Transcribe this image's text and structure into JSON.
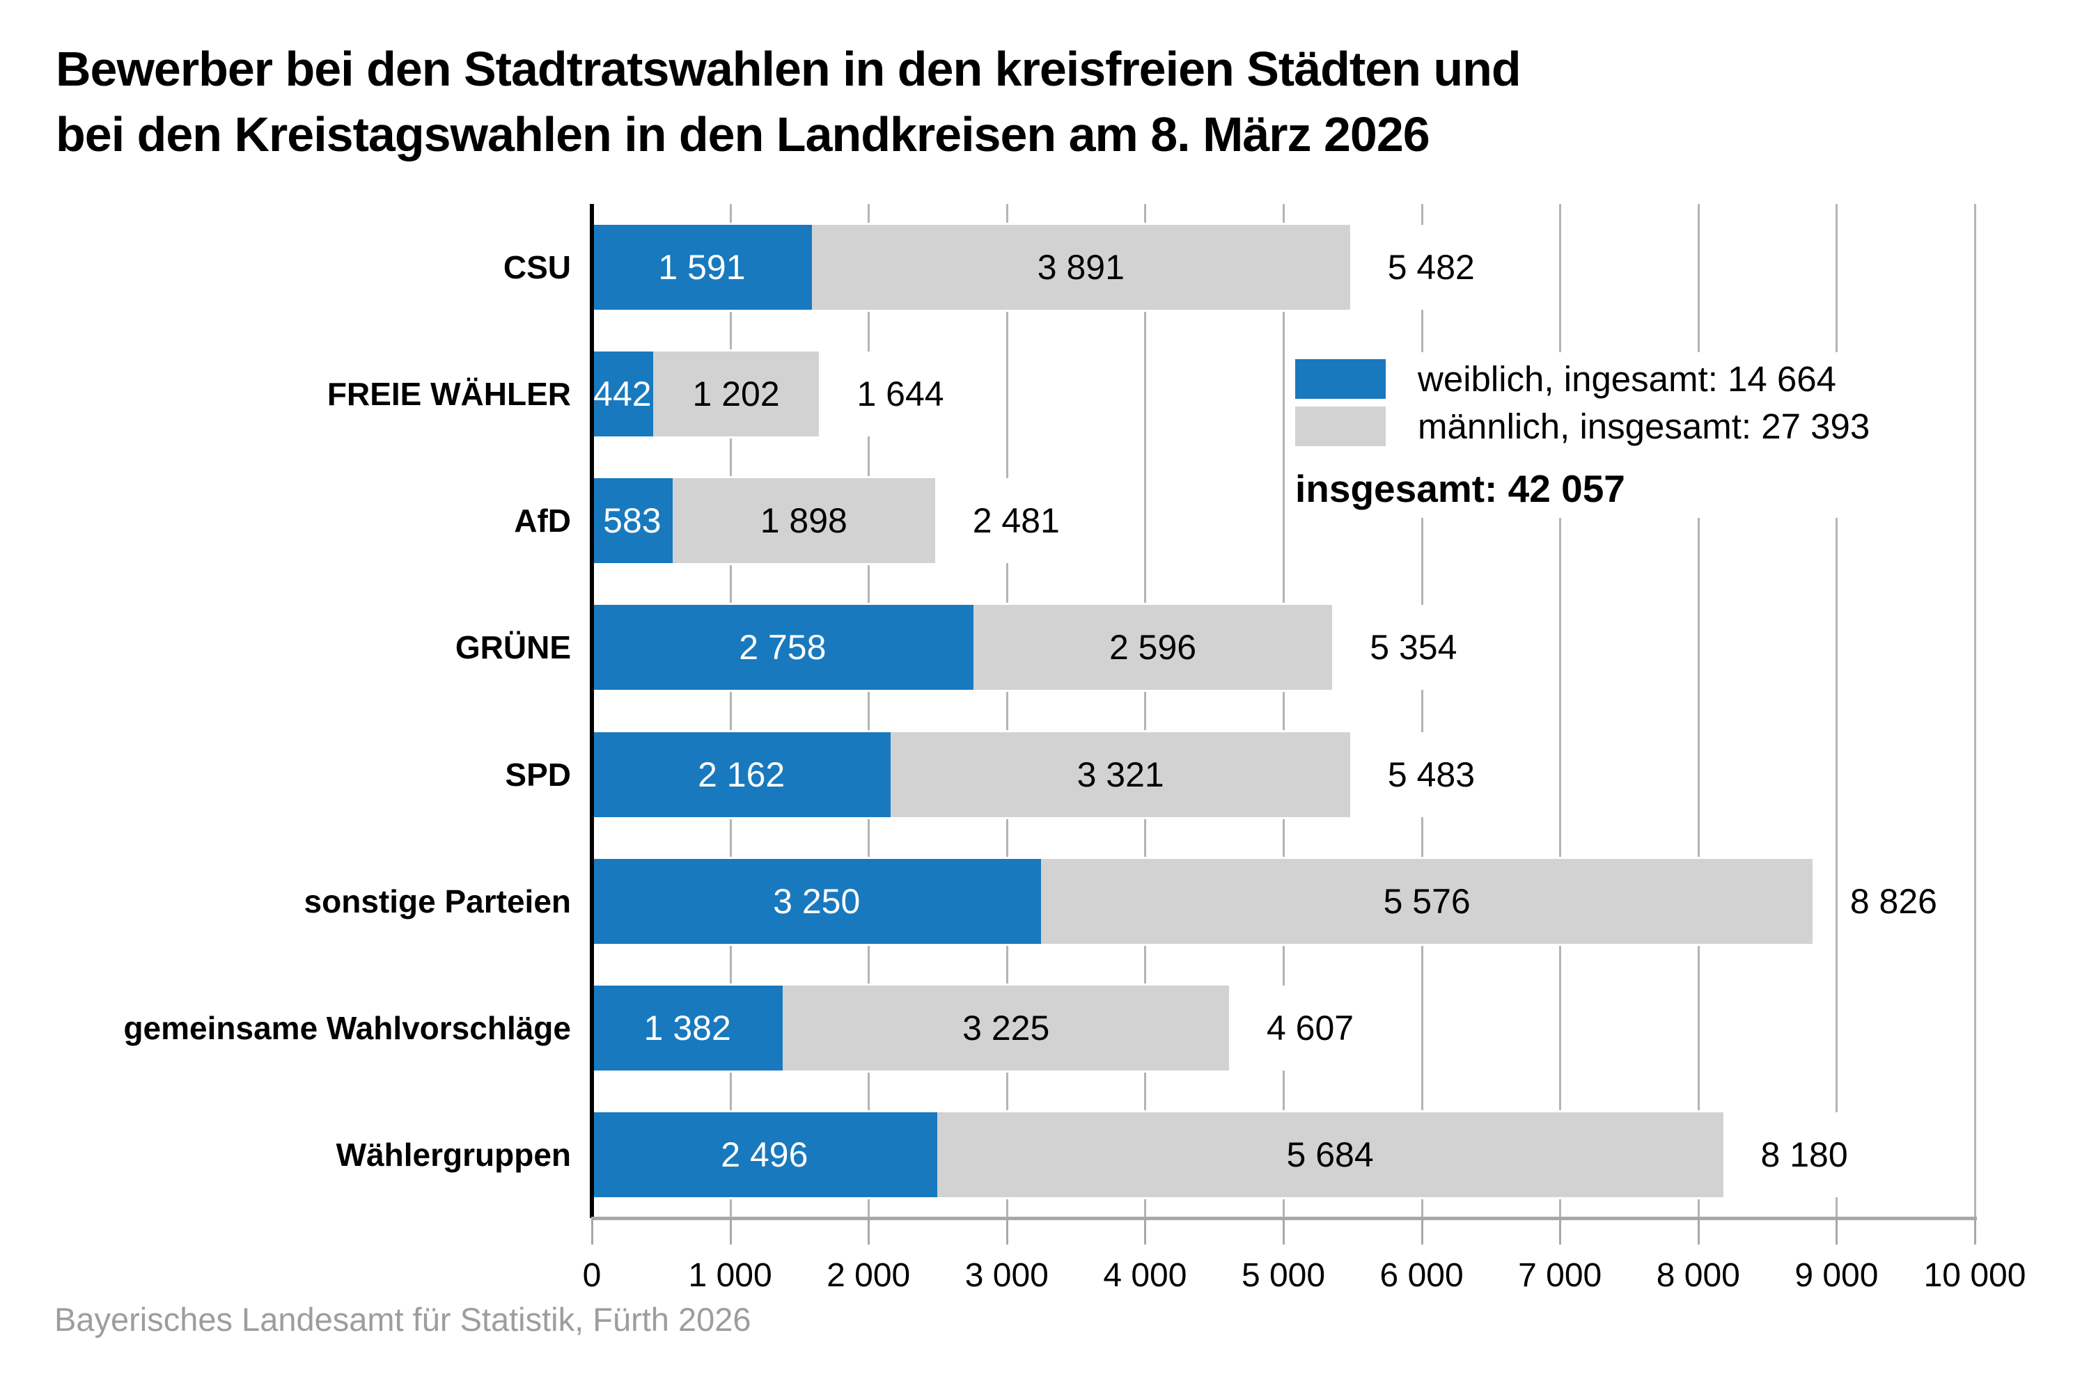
{
  "title": {
    "line1": "Bewerber bei den Stadtratswahlen in den kreisfreien Städten und",
    "line2": "bei den Kreistagswahlen in den Landkreisen am 8. März 2026"
  },
  "legend": {
    "female_label": "weiblich, ingesamt: 14 664",
    "male_label": "männlich, insgesamt: 27 393",
    "total_label": "insgesamt: 42 057"
  },
  "footer": "Bayerisches Landesamt für Statistik, Fürth 2026",
  "colors": {
    "female": "#1879be",
    "male": "#d2d2d2",
    "grid": "#b4b4b4",
    "axis": "#000000",
    "axis_bottom": "#a8a8a8",
    "footer_text": "#9d9d9d"
  },
  "chart_data": {
    "type": "bar",
    "orientation": "horizontal",
    "stacked": true,
    "title": "Bewerber bei den Stadtratswahlen in den kreisfreien Städten und bei den Kreistagswahlen in den Landkreisen am 8. März 2026",
    "categories": [
      "CSU",
      "FREIE WÄHLER",
      "AfD",
      "GRÜNE",
      "SPD",
      "sonstige Parteien",
      "gemeinsame Wahlvorschläge",
      "Wählergruppen"
    ],
    "series": [
      {
        "name": "weiblich",
        "color": "#1879be",
        "values": [
          1591,
          442,
          583,
          2758,
          2162,
          3250,
          1382,
          2496
        ],
        "labels": [
          "1 591",
          "442",
          "583",
          "2 758",
          "2 162",
          "3 250",
          "1 382",
          "2 496"
        ],
        "total": 14664
      },
      {
        "name": "männlich",
        "color": "#d2d2d2",
        "values": [
          3891,
          1202,
          1898,
          2596,
          3321,
          5576,
          3225,
          5684
        ],
        "labels": [
          "3 891",
          "1 202",
          "1 898",
          "2 596",
          "3 321",
          "5 576",
          "3 225",
          "5 684"
        ],
        "total": 27393
      }
    ],
    "totals": [
      5482,
      1644,
      2481,
      5354,
      5483,
      8826,
      4607,
      8180
    ],
    "total_labels": [
      "5 482",
      "1 644",
      "2 481",
      "5 354",
      "5 483",
      "8 826",
      "4 607",
      "8 180"
    ],
    "grand_total": 42057,
    "xlim": [
      0,
      10000
    ],
    "xticks": [
      0,
      1000,
      2000,
      3000,
      4000,
      5000,
      6000,
      7000,
      8000,
      9000,
      10000
    ],
    "xtick_labels": [
      "0",
      "1 000",
      "2 000",
      "3 000",
      "4 000",
      "5 000",
      "6 000",
      "7 000",
      "8 000",
      "9 000",
      "10 000"
    ],
    "xlabel": "",
    "ylabel": "",
    "grid": true,
    "legend_position": "upper-right"
  }
}
